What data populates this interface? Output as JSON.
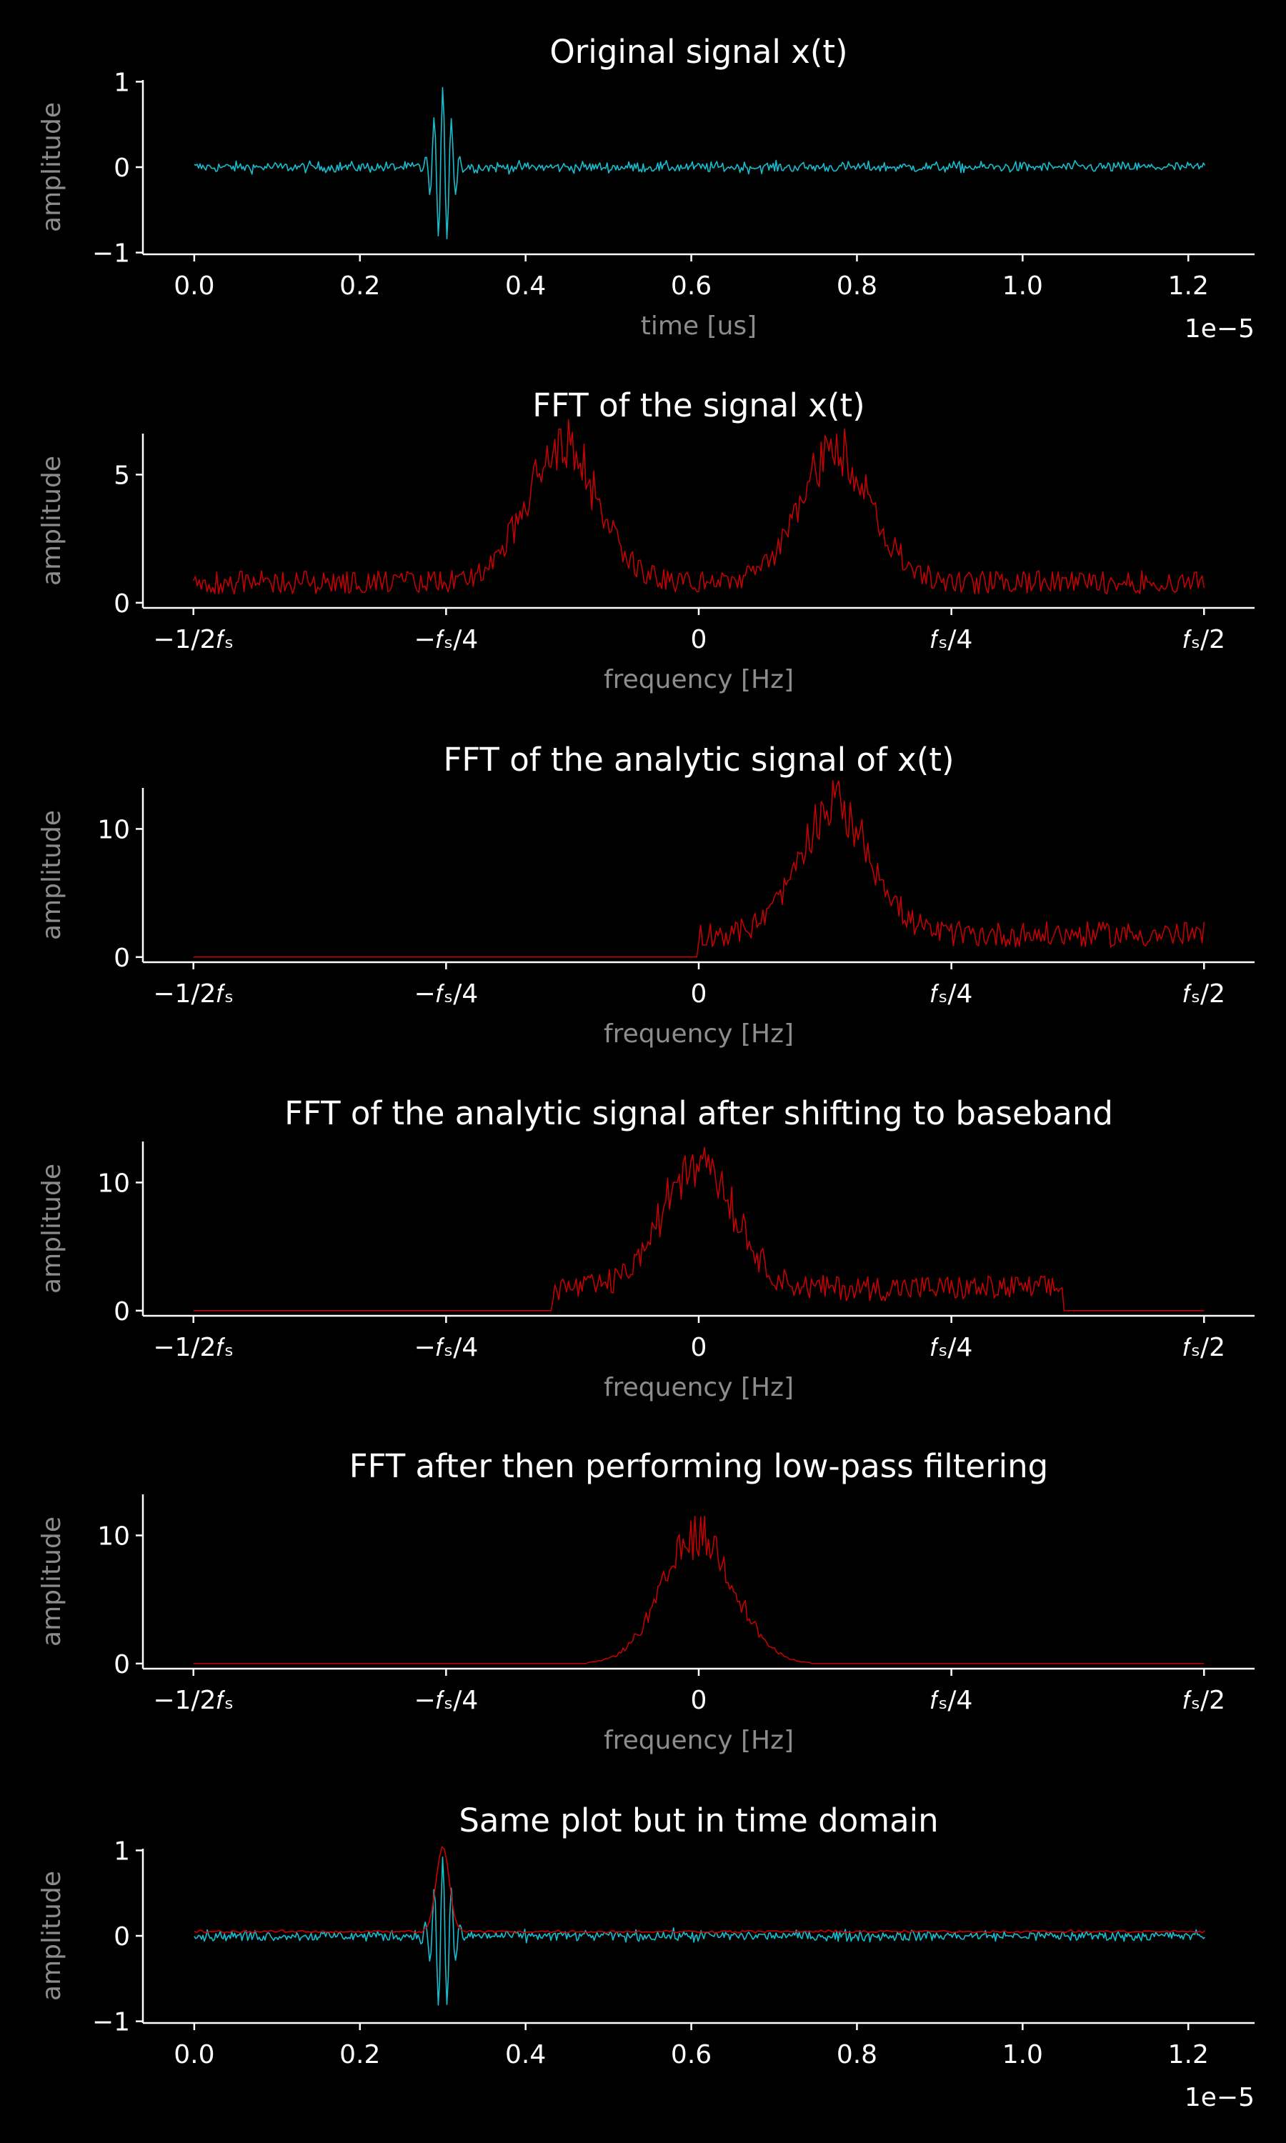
{
  "colors": {
    "background": "#000000",
    "axes": "#ffffff",
    "tick_label": "#ffffff",
    "axis_label": "#8c8c8c",
    "time_signal": "#17becf",
    "spectrum": "#cc0000",
    "envelope": "#cc0000"
  },
  "freq_tick_labels": [
    "−1/2𝑓ₛ",
    "−𝑓ₛ/4",
    "0",
    "𝑓ₛ/4",
    "𝑓ₛ/2"
  ],
  "chart_data": [
    {
      "type": "line",
      "title": "Original signal x(t)",
      "xlabel": "time [us]",
      "ylabel": "amplitude",
      "x_offset_text": "1e−5",
      "xlim": [
        -6.2e-07,
        1.28e-05
      ],
      "ylim": [
        -1.02,
        1.02
      ],
      "xticks": [
        0,
        2e-06,
        4e-06,
        6e-06,
        8e-06,
        1e-05,
        1.2e-05
      ],
      "xtick_labels": [
        "0.0",
        "0.2",
        "0.4",
        "0.6",
        "0.8",
        "1.0",
        "1.2"
      ],
      "yticks": [
        -1,
        0,
        1
      ],
      "ytick_labels": [
        "−1",
        "0",
        "1"
      ],
      "series": [
        {
          "kind": "time_signal",
          "x_range": [
            0,
            1.22e-05
          ],
          "pulse_center": 3e-06,
          "peak": 0.93,
          "noise": 0.06
        }
      ]
    },
    {
      "type": "line",
      "title": "FFT of the signal x(t)",
      "xlabel": "frequency [Hz]",
      "ylabel": "amplitude",
      "xlim": [
        -0.55,
        0.55
      ],
      "ylim": [
        -0.2,
        6.6
      ],
      "xticks": [
        -0.5,
        -0.25,
        0,
        0.25,
        0.5
      ],
      "yticks": [
        0,
        5
      ],
      "ytick_labels": [
        "0",
        "5"
      ],
      "series": [
        {
          "kind": "spectrum",
          "x_range": [
            -0.5,
            0.5
          ],
          "peaks": [
            [
              -0.135,
              5.3,
              0.05
            ],
            [
              0.135,
              5.3,
              0.05
            ]
          ],
          "floor": 1.0,
          "band": [
            -0.5,
            0.5
          ],
          "jitter": 0.55
        }
      ]
    },
    {
      "type": "line",
      "title": "FFT of the analytic signal of x(t)",
      "xlabel": "frequency [Hz]",
      "ylabel": "amplitude",
      "xlim": [
        -0.55,
        0.55
      ],
      "ylim": [
        -0.4,
        13.2
      ],
      "xticks": [
        -0.5,
        -0.25,
        0,
        0.25,
        0.5
      ],
      "yticks": [
        0,
        10
      ],
      "ytick_labels": [
        "0",
        "10"
      ],
      "series": [
        {
          "kind": "spectrum",
          "x_range": [
            -0.5,
            0.5
          ],
          "peaks": [
            [
              0.135,
              10.2,
              0.05
            ]
          ],
          "floor": 2.2,
          "band": [
            0,
            0.5
          ],
          "jitter": 0.55
        }
      ]
    },
    {
      "type": "line",
      "title": "FFT of the analytic signal after shifting to baseband",
      "xlabel": "frequency [Hz]",
      "ylabel": "amplitude",
      "xlim": [
        -0.55,
        0.55
      ],
      "ylim": [
        -0.4,
        13.2
      ],
      "xticks": [
        -0.5,
        -0.25,
        0,
        0.25,
        0.5
      ],
      "yticks": [
        0,
        10
      ],
      "ytick_labels": [
        "0",
        "10"
      ],
      "series": [
        {
          "kind": "spectrum",
          "x_range": [
            -0.5,
            0.5
          ],
          "peaks": [
            [
              0.0,
              10.2,
              0.05
            ]
          ],
          "floor": 2.2,
          "band": [
            -0.145,
            0.36
          ],
          "jitter": 0.55
        }
      ]
    },
    {
      "type": "line",
      "title": "FFT after then performing low-pass filtering",
      "xlabel": "frequency [Hz]",
      "ylabel": "amplitude",
      "xlim": [
        -0.55,
        0.55
      ],
      "ylim": [
        -0.4,
        13.2
      ],
      "xticks": [
        -0.5,
        -0.25,
        0,
        0.25,
        0.5
      ],
      "yticks": [
        0,
        10
      ],
      "ytick_labels": [
        "0",
        "10"
      ],
      "series": [
        {
          "kind": "spectrum",
          "x_range": [
            -0.5,
            0.5
          ],
          "peaks": [
            [
              0.0,
              10.2,
              0.05
            ]
          ],
          "floor": 0.0,
          "band": [
            -0.11,
            0.11
          ],
          "jitter": 0.55
        }
      ]
    },
    {
      "type": "line",
      "title": "Same plot but in time domain",
      "xlabel": "",
      "ylabel": "amplitude",
      "x_offset_text": "1e−5",
      "xlim": [
        -6.2e-07,
        1.28e-05
      ],
      "ylim": [
        -1.02,
        1.02
      ],
      "xticks": [
        0,
        2e-06,
        4e-06,
        6e-06,
        8e-06,
        1e-05,
        1.2e-05
      ],
      "xtick_labels": [
        "0.0",
        "0.2",
        "0.4",
        "0.6",
        "0.8",
        "1.0",
        "1.2"
      ],
      "yticks": [
        -1,
        0,
        1
      ],
      "ytick_labels": [
        "−1",
        "0",
        "1"
      ],
      "series": [
        {
          "kind": "time_signal",
          "x_range": [
            0,
            1.22e-05
          ],
          "pulse_center": 3e-06,
          "peak": 0.93,
          "noise": 0.06
        },
        {
          "kind": "envelope",
          "x_range": [
            0,
            1.22e-05
          ],
          "pulse_center": 3e-06,
          "peak": 1.0,
          "floor": 0.05
        }
      ]
    }
  ]
}
